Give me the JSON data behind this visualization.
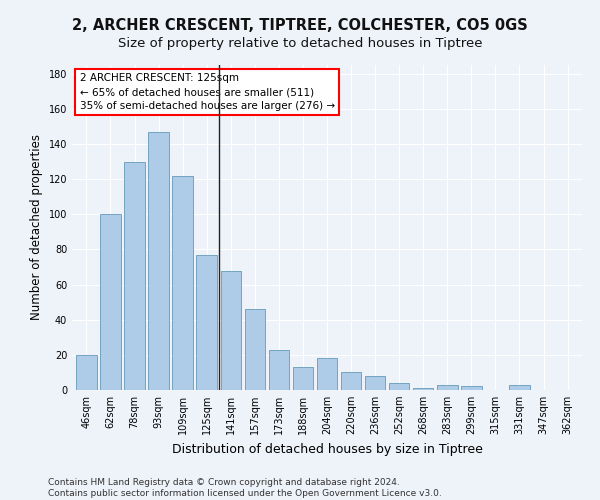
{
  "title": "2, ARCHER CRESCENT, TIPTREE, COLCHESTER, CO5 0GS",
  "subtitle": "Size of property relative to detached houses in Tiptree",
  "xlabel": "Distribution of detached houses by size in Tiptree",
  "ylabel": "Number of detached properties",
  "categories": [
    "46sqm",
    "62sqm",
    "78sqm",
    "93sqm",
    "109sqm",
    "125sqm",
    "141sqm",
    "157sqm",
    "173sqm",
    "188sqm",
    "204sqm",
    "220sqm",
    "236sqm",
    "252sqm",
    "268sqm",
    "283sqm",
    "299sqm",
    "315sqm",
    "331sqm",
    "347sqm",
    "362sqm"
  ],
  "values": [
    20,
    100,
    130,
    147,
    122,
    77,
    68,
    46,
    23,
    13,
    18,
    10,
    8,
    4,
    1,
    3,
    2,
    0,
    3,
    0,
    0
  ],
  "bar_color": "#aecce8",
  "bar_edge_color": "#6699bb",
  "highlight_line_index": 5,
  "highlight_line_color": "#222222",
  "annotation_text_line1": "2 ARCHER CRESCENT: 125sqm",
  "annotation_text_line2": "← 65% of detached houses are smaller (511)",
  "annotation_text_line3": "35% of semi-detached houses are larger (276) →",
  "annotation_box_color": "white",
  "annotation_box_edge_color": "red",
  "ylim": [
    0,
    185
  ],
  "yticks": [
    0,
    20,
    40,
    60,
    80,
    100,
    120,
    140,
    160,
    180
  ],
  "footnote_line1": "Contains HM Land Registry data © Crown copyright and database right 2024.",
  "footnote_line2": "Contains public sector information licensed under the Open Government Licence v3.0.",
  "background_color": "#eef2f9",
  "grid_color": "#ffffff",
  "title_fontsize": 10.5,
  "subtitle_fontsize": 9.5,
  "ylabel_fontsize": 8.5,
  "xlabel_fontsize": 9,
  "tick_fontsize": 7,
  "annotation_fontsize": 7.5,
  "footnote_fontsize": 6.5
}
